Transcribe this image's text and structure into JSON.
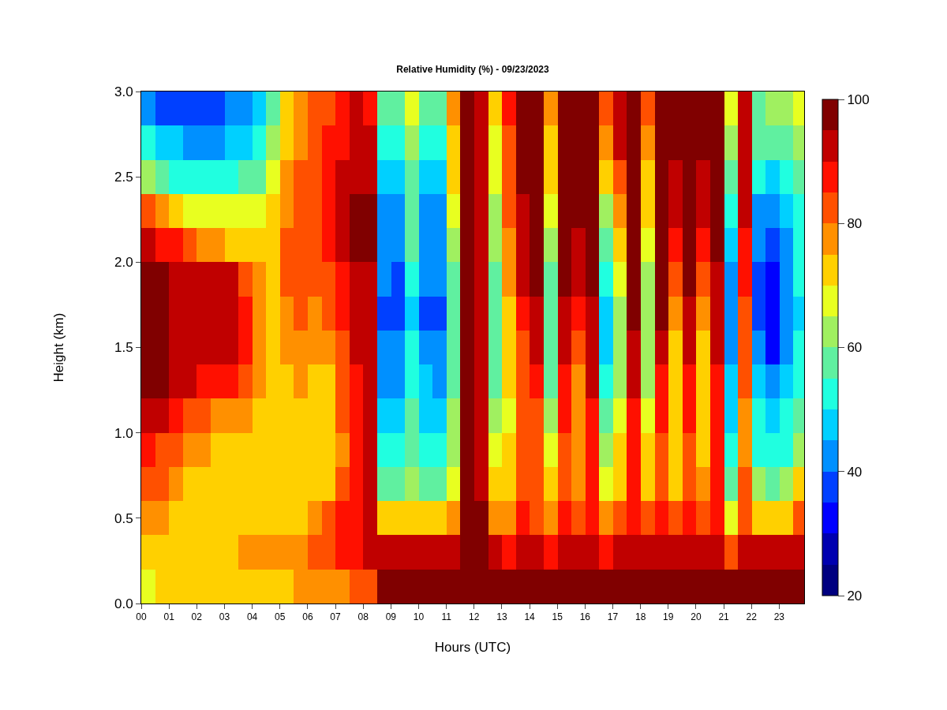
{
  "chart_data": {
    "type": "heatmap",
    "title": "Relative Humidity (%) - 09/23/2023",
    "xlabel": "Hours (UTC)",
    "ylabel": "Height (km)",
    "x": [
      0.25,
      0.75,
      1.25,
      1.75,
      2.25,
      2.75,
      3.25,
      3.75,
      4.25,
      4.75,
      5.25,
      5.75,
      6.25,
      6.75,
      7.25,
      7.75,
      8.25,
      8.75,
      9.25,
      9.75,
      10.25,
      10.75,
      11.25,
      11.75,
      12.25,
      12.75,
      13.25,
      13.75,
      14.25,
      14.75,
      15.25,
      15.75,
      16.25,
      16.75,
      17.25,
      17.75,
      18.25,
      18.75,
      19.25,
      19.75,
      20.25,
      20.75,
      21.25,
      21.75,
      22.25,
      22.75,
      23.25,
      23.75
    ],
    "y": [
      2.9,
      2.7,
      2.5,
      2.3,
      2.1,
      1.9,
      1.7,
      1.5,
      1.3,
      1.1,
      0.9,
      0.7,
      0.5,
      0.3,
      0.1
    ],
    "cells": [
      [
        42,
        38,
        36,
        35,
        35,
        38,
        40,
        42,
        46,
        58,
        72,
        76,
        80,
        84,
        88,
        90,
        88,
        55,
        55,
        66,
        55,
        56,
        76,
        98,
        92,
        70,
        86,
        97,
        97,
        78,
        97,
        97,
        97,
        82,
        94,
        97,
        82,
        97,
        97,
        97,
        97,
        97,
        66,
        92,
        58,
        60,
        62,
        66
      ],
      [
        50,
        45,
        45,
        43,
        42,
        44,
        46,
        48,
        52,
        62,
        74,
        78,
        82,
        86,
        88,
        92,
        90,
        50,
        50,
        62,
        50,
        52,
        74,
        98,
        92,
        68,
        84,
        97,
        97,
        74,
        97,
        97,
        97,
        76,
        90,
        97,
        78,
        97,
        96,
        97,
        96,
        97,
        62,
        92,
        55,
        55,
        58,
        62
      ],
      [
        62,
        55,
        52,
        50,
        50,
        52,
        54,
        56,
        58,
        66,
        76,
        80,
        84,
        88,
        90,
        94,
        92,
        45,
        45,
        58,
        45,
        46,
        70,
        98,
        92,
        65,
        82,
        96,
        97,
        70,
        97,
        97,
        97,
        70,
        84,
        97,
        74,
        97,
        94,
        97,
        94,
        97,
        56,
        92,
        50,
        48,
        52,
        58
      ],
      [
        82,
        75,
        70,
        68,
        66,
        66,
        66,
        65,
        65,
        70,
        78,
        82,
        84,
        88,
        90,
        96,
        97,
        42,
        40,
        55,
        42,
        42,
        66,
        98,
        92,
        62,
        80,
        94,
        97,
        66,
        97,
        96,
        97,
        64,
        78,
        97,
        70,
        97,
        92,
        97,
        92,
        97,
        52,
        90,
        44,
        40,
        46,
        54
      ],
      [
        90,
        88,
        85,
        80,
        78,
        76,
        74,
        72,
        70,
        72,
        80,
        82,
        84,
        86,
        90,
        96,
        96,
        42,
        40,
        55,
        42,
        42,
        62,
        98,
        92,
        60,
        78,
        92,
        97,
        62,
        97,
        94,
        97,
        58,
        72,
        97,
        66,
        97,
        88,
        97,
        88,
        96,
        48,
        88,
        40,
        38,
        44,
        52
      ],
      [
        97,
        96,
        93,
        92,
        92,
        91,
        90,
        82,
        76,
        74,
        80,
        82,
        82,
        84,
        88,
        94,
        94,
        40,
        38,
        52,
        40,
        40,
        58,
        98,
        92,
        58,
        76,
        90,
        96,
        58,
        96,
        90,
        96,
        52,
        66,
        97,
        62,
        97,
        82,
        96,
        82,
        94,
        44,
        86,
        38,
        34,
        42,
        50
      ],
      [
        97,
        96,
        94,
        92,
        92,
        92,
        90,
        86,
        76,
        74,
        78,
        80,
        78,
        82,
        86,
        92,
        94,
        38,
        36,
        48,
        38,
        36,
        55,
        98,
        92,
        55,
        74,
        86,
        94,
        55,
        94,
        86,
        94,
        48,
        62,
        96,
        60,
        96,
        76,
        94,
        76,
        92,
        42,
        84,
        36,
        32,
        40,
        48
      ],
      [
        97,
        97,
        94,
        92,
        92,
        92,
        90,
        85,
        76,
        74,
        76,
        78,
        75,
        78,
        84,
        90,
        93,
        40,
        40,
        50,
        42,
        40,
        56,
        98,
        90,
        56,
        72,
        84,
        90,
        55,
        90,
        82,
        92,
        48,
        62,
        92,
        60,
        92,
        72,
        90,
        72,
        90,
        42,
        82,
        40,
        34,
        42,
        50
      ],
      [
        97,
        96,
        92,
        90,
        88,
        88,
        86,
        80,
        75,
        73,
        74,
        76,
        72,
        74,
        82,
        88,
        92,
        42,
        44,
        52,
        45,
        42,
        58,
        98,
        90,
        58,
        70,
        82,
        86,
        58,
        88,
        78,
        90,
        52,
        64,
        90,
        62,
        88,
        70,
        88,
        70,
        88,
        45,
        80,
        46,
        40,
        46,
        52
      ],
      [
        92,
        90,
        86,
        82,
        80,
        78,
        76,
        75,
        73,
        72,
        72,
        74,
        70,
        72,
        80,
        86,
        90,
        45,
        48,
        55,
        48,
        45,
        60,
        98,
        90,
        60,
        68,
        80,
        82,
        62,
        86,
        76,
        88,
        56,
        66,
        88,
        66,
        86,
        70,
        86,
        70,
        86,
        48,
        78,
        50,
        46,
        50,
        56
      ],
      [
        86,
        84,
        80,
        76,
        75,
        74,
        74,
        73,
        72,
        70,
        70,
        72,
        70,
        72,
        78,
        86,
        90,
        50,
        52,
        58,
        52,
        50,
        62,
        98,
        90,
        65,
        70,
        80,
        80,
        65,
        84,
        76,
        86,
        62,
        70,
        86,
        70,
        84,
        72,
        84,
        72,
        86,
        52,
        78,
        54,
        50,
        54,
        62
      ],
      [
        82,
        80,
        76,
        73,
        72,
        72,
        72,
        71,
        70,
        70,
        70,
        72,
        72,
        74,
        80,
        86,
        90,
        55,
        58,
        62,
        58,
        56,
        66,
        98,
        92,
        70,
        72,
        82,
        80,
        70,
        84,
        78,
        86,
        68,
        74,
        86,
        74,
        84,
        74,
        84,
        76,
        86,
        58,
        80,
        60,
        56,
        60,
        70
      ],
      [
        77,
        75,
        72,
        70,
        70,
        70,
        70,
        70,
        70,
        72,
        73,
        74,
        76,
        80,
        85,
        88,
        90,
        72,
        70,
        72,
        72,
        70,
        76,
        98,
        95,
        76,
        78,
        85,
        84,
        78,
        86,
        82,
        88,
        76,
        80,
        88,
        80,
        86,
        80,
        86,
        82,
        88,
        68,
        84,
        72,
        70,
        74,
        80
      ],
      [
        73,
        72,
        72,
        72,
        73,
        74,
        74,
        75,
        75,
        76,
        77,
        78,
        80,
        84,
        87,
        88,
        90,
        92,
        90,
        90,
        90,
        90,
        92,
        98,
        97,
        90,
        88,
        90,
        90,
        88,
        92,
        90,
        92,
        88,
        90,
        92,
        90,
        92,
        90,
        92,
        90,
        92,
        84,
        90,
        90,
        90,
        90,
        92
      ],
      [
        68,
        70,
        72,
        73,
        73,
        72,
        72,
        73,
        74,
        74,
        74,
        76,
        77,
        78,
        78,
        80,
        82,
        97,
        97,
        95,
        97,
        97,
        97,
        98,
        98,
        97,
        97,
        97,
        97,
        97,
        97,
        97,
        97,
        97,
        97,
        97,
        97,
        97,
        97,
        97,
        97,
        97,
        97,
        97,
        97,
        97,
        97,
        97
      ]
    ],
    "colors": [
      "#000080",
      "#0000b0",
      "#0000ff",
      "#0040ff",
      "#0090ff",
      "#00d0ff",
      "#20ffe0",
      "#60f0a0",
      "#a0f060",
      "#e8ff20",
      "#ffd000",
      "#ff9000",
      "#ff5000",
      "#ff1000",
      "#c00000",
      "#800000"
    ],
    "clim": [
      20,
      100
    ],
    "cticks": [
      20,
      40,
      60,
      80,
      100
    ],
    "xlim": [
      0,
      23.9
    ],
    "xticks": [
      {
        "value": 0,
        "label": "00"
      },
      {
        "value": 1,
        "label": "01"
      },
      {
        "value": 2,
        "label": "02"
      },
      {
        "value": 3,
        "label": "03"
      },
      {
        "value": 4,
        "label": "04"
      },
      {
        "value": 5,
        "label": "05"
      },
      {
        "value": 6,
        "label": "06"
      },
      {
        "value": 7,
        "label": "07"
      },
      {
        "value": 8,
        "label": "08"
      },
      {
        "value": 9,
        "label": "09"
      },
      {
        "value": 10,
        "label": "10"
      },
      {
        "value": 11,
        "label": "11"
      },
      {
        "value": 12,
        "label": "12"
      },
      {
        "value": 13,
        "label": "13"
      },
      {
        "value": 14,
        "label": "14"
      },
      {
        "value": 15,
        "label": "15"
      },
      {
        "value": 16,
        "label": "16"
      },
      {
        "value": 17,
        "label": "17"
      },
      {
        "value": 18,
        "label": "18"
      },
      {
        "value": 19,
        "label": "19"
      },
      {
        "value": 20,
        "label": "20"
      },
      {
        "value": 21,
        "label": "21"
      },
      {
        "value": 22,
        "label": "22"
      },
      {
        "value": 23,
        "label": "23"
      }
    ],
    "ylim": [
      0,
      3
    ],
    "yticks": [
      {
        "value": 0,
        "label": "0.0"
      },
      {
        "value": 0.5,
        "label": "0.5"
      },
      {
        "value": 1,
        "label": "1.0"
      },
      {
        "value": 1.5,
        "label": "1.5"
      },
      {
        "value": 2,
        "label": "2.0"
      },
      {
        "value": 2.5,
        "label": "2.5"
      },
      {
        "value": 3,
        "label": "3.0"
      }
    ]
  }
}
